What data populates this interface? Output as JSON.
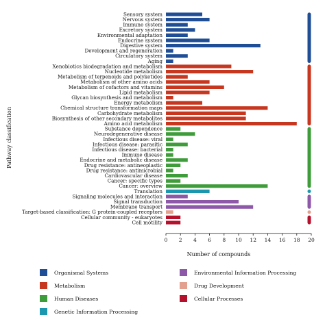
{
  "chart_data": {
    "type": "bar",
    "orientation": "horizontal",
    "xlabel": "Number of compounds",
    "ylabel": "Pathway classification",
    "xlim": [
      0,
      20
    ],
    "xticks": [
      "0",
      "2",
      "4",
      "6",
      "8",
      "10",
      "12",
      "14",
      "16",
      "18",
      "20"
    ],
    "grid": false,
    "legend_placement": "bottom",
    "groups": [
      {
        "name": "Organismal Systems",
        "color": "#1f4e96"
      },
      {
        "name": "Metabolism",
        "color": "#c7361f"
      },
      {
        "name": "Human Diseases",
        "color": "#3f9c3a"
      },
      {
        "name": "Genetic Information Processing",
        "color": "#1b98b0"
      },
      {
        "name": "Environmental Information Processing",
        "color": "#8e58a8"
      },
      {
        "name": "Drug Development",
        "color": "#e3a08e"
      },
      {
        "name": "Cellular Processes",
        "color": "#b5112c"
      }
    ],
    "categories": [
      "Sensory system",
      "Nervous system",
      "Immune system",
      "Excretory system",
      "Environmental adaptation",
      "Endocrine system",
      "Digestive system",
      "Development and regeneration",
      "Circulatory system",
      "Aging",
      "Xenobiotics biodegradation and metabolism",
      "Nucleotide metabolism",
      "Metabolism of terpenoids and polyketides",
      "Metabolism of other amino acids",
      "Metabolism of cofactors and vitamins",
      "Lipid metabolism",
      "Glycan biosynthesis and metabolism",
      "Energy metabolism",
      "Chemical structure transformation maps",
      "Carbohydrate metabolism",
      "Biosynthesis of other secondary metabolites",
      "Amino acid metabolism",
      "Substance dependence",
      "Neurodegenerative disease",
      "Infectious disease: viral",
      "Infectious disease: parasitic",
      "Infectious disease: bacterial",
      "Immune disease",
      "Endocrine and metabolic disease",
      "Drug resistance: antineoplastic",
      "Drug resistance: antimicrobial",
      "Cardiovascular disease",
      "Cancer: specific types",
      "Cancer: overview",
      "Translation",
      "Signaling molecules and interaction",
      "Signal transduction",
      "Membrane transport",
      "Target-based classification: G protein-coupled receptors",
      "Cellular community - eukaryotes",
      "Cell motility"
    ],
    "values": [
      5,
      6,
      3,
      4,
      3,
      6,
      13,
      1,
      3,
      1,
      9,
      12,
      3,
      6,
      8,
      6,
      1,
      5,
      14,
      11,
      11,
      18,
      2,
      4,
      1,
      3,
      1,
      1,
      3,
      2,
      1,
      3,
      2,
      14,
      6,
      3,
      10,
      12,
      1,
      2,
      2
    ],
    "group_index": [
      0,
      0,
      0,
      0,
      0,
      0,
      0,
      0,
      0,
      0,
      1,
      1,
      1,
      1,
      1,
      1,
      1,
      1,
      1,
      1,
      1,
      1,
      2,
      2,
      2,
      2,
      2,
      2,
      2,
      2,
      2,
      2,
      2,
      2,
      3,
      4,
      4,
      4,
      5,
      6,
      6
    ]
  }
}
